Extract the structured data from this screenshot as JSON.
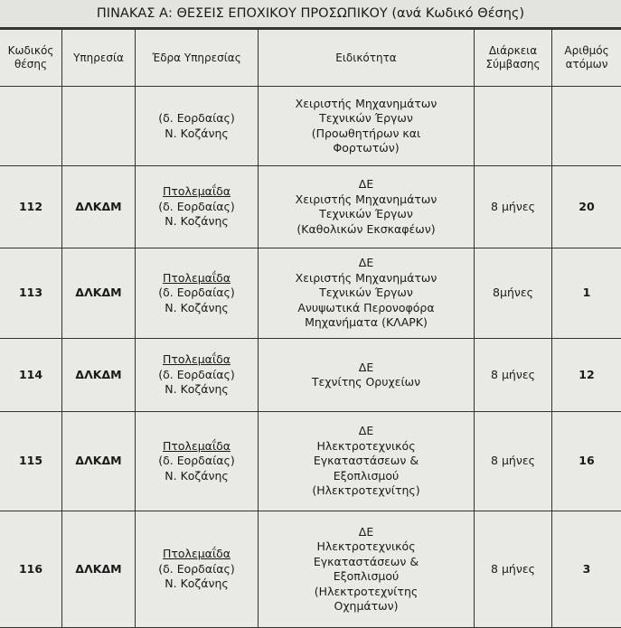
{
  "title": "ΠΙΝΑΚΑΣ Α: ΘΕΣΕΙΣ ΕΠΟΧΙΚΟΥ ΠΡΟΣΩΠΙΚΟΥ (ανά Κωδικό Θέσης)",
  "columns": [
    "Κωδικός θέσης",
    "Υπηρεσία",
    "Έδρα Υπηρεσίας",
    "Ειδικότητα",
    "Διάρκεια Σύμβασης",
    "Αριθμός ατόμων"
  ],
  "rows": [
    {
      "code": "",
      "service": "",
      "seat_city": "",
      "seat_lines": [
        "(δ. Εορδαίας)",
        "Ν. Κοζάνης"
      ],
      "specialty_lines": [
        "Χειριστής Μηχανημάτων",
        "Τεχνικών Έργων",
        "(Προωθητήρων και",
        "Φορτωτών)"
      ],
      "duration": "",
      "count": ""
    },
    {
      "code": "112",
      "service": "ΔΛΚΔΜ",
      "seat_city": "Πτολεμαΐδα",
      "seat_lines": [
        "(δ. Εορδαίας)",
        "Ν. Κοζάνης"
      ],
      "specialty_lines": [
        "ΔΕ",
        "Χειριστής Μηχανημάτων",
        "Τεχνικών Έργων",
        "(Καθολικών Εκσκαφέων)"
      ],
      "duration": "8 μήνες",
      "count": "20"
    },
    {
      "code": "113",
      "service": "ΔΛΚΔΜ",
      "seat_city": "Πτολεμαΐδα",
      "seat_lines": [
        "(δ. Εορδαίας)",
        "Ν. Κοζάνης"
      ],
      "specialty_lines": [
        "ΔΕ",
        "Χειριστής Μηχανημάτων",
        "Τεχνικών Έργων",
        "Ανυψωτικά Περονοφόρα",
        "Μηχανήματα (ΚΛΑΡΚ)"
      ],
      "duration": "8μήνες",
      "count": "1"
    },
    {
      "code": "114",
      "service": "ΔΛΚΔΜ",
      "seat_city": "Πτολεμαΐδα",
      "seat_lines": [
        "(δ. Εορδαίας)",
        "Ν. Κοζάνης"
      ],
      "specialty_lines": [
        "ΔΕ",
        "Τεχνίτης Ορυχείων"
      ],
      "duration": "8 μήνες",
      "count": "12"
    },
    {
      "code": "115",
      "service": "ΔΛΚΔΜ",
      "seat_city": "Πτολεμαΐδα",
      "seat_lines": [
        "(δ. Εορδαίας)",
        "Ν. Κοζάνης"
      ],
      "specialty_lines": [
        "ΔΕ",
        "Ηλεκτροτεχνικός",
        "Εγκαταστάσεων &",
        "Εξοπλισμού",
        "(Ηλεκτροτεχνίτης)"
      ],
      "duration": "8 μήνες",
      "count": "16"
    },
    {
      "code": "116",
      "service": "ΔΛΚΔΜ",
      "seat_city": "Πτολεμαΐδα",
      "seat_lines": [
        "(δ. Εορδαίας)",
        "Ν. Κοζάνης"
      ],
      "specialty_lines": [
        "ΔΕ",
        "Ηλεκτροτεχνικός",
        "Εγκαταστάσεων &",
        "Εξοπλισμού",
        "(Ηλεκτροτεχνίτης",
        "Οχημάτων)"
      ],
      "duration": "8 μήνες",
      "count": "3"
    }
  ]
}
